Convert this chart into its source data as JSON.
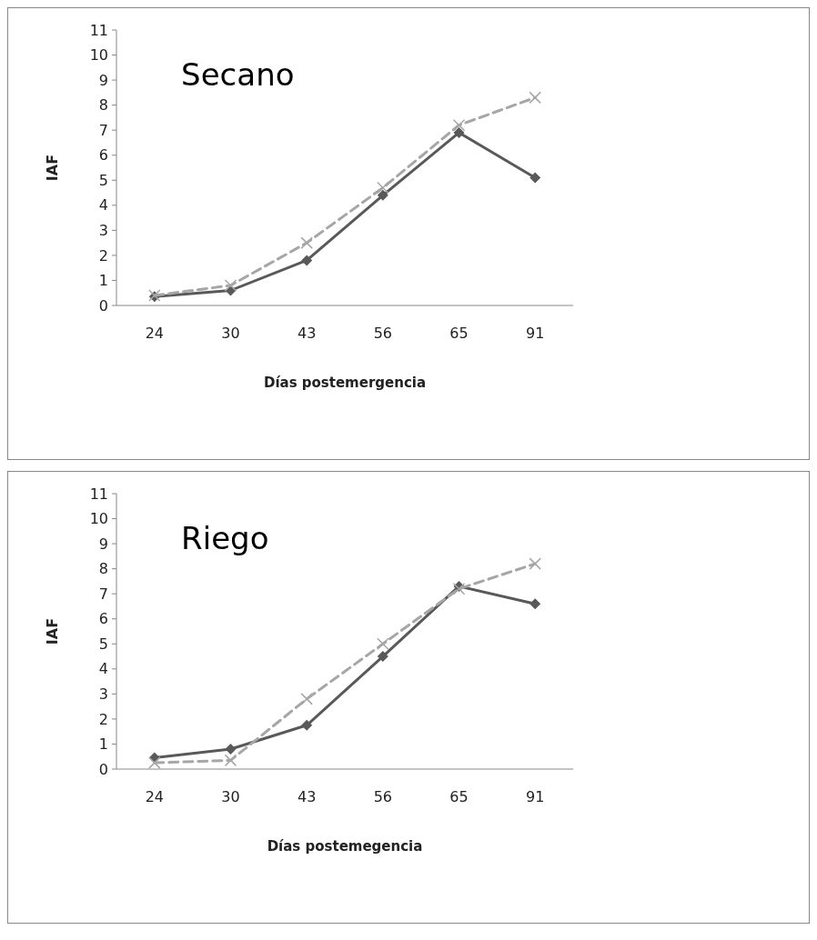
{
  "chart_data": [
    {
      "type": "line",
      "title": "Secano",
      "xlabel": "Días postemergencia",
      "ylabel": "IAF",
      "categories": [
        "24",
        "30",
        "43",
        "56",
        "65",
        "91"
      ],
      "ylim": [
        0,
        11
      ],
      "yticks": [
        0,
        1,
        2,
        3,
        4,
        5,
        6,
        7,
        8,
        9,
        10,
        11
      ],
      "grid": false,
      "series": [
        {
          "color": "#595959",
          "marker": "diamond",
          "line_style": "solid",
          "values": [
            0.35,
            0.6,
            1.8,
            4.4,
            6.9,
            5.1
          ]
        },
        {
          "color": "#a6a6a6",
          "marker": "cross",
          "line_style": "dashed",
          "values": [
            0.4,
            0.8,
            2.5,
            4.7,
            7.2,
            8.3
          ]
        }
      ]
    },
    {
      "type": "line",
      "title": "Riego",
      "xlabel": "Días postemegencia",
      "ylabel": "IAF",
      "categories": [
        "24",
        "30",
        "43",
        "56",
        "65",
        "91"
      ],
      "ylim": [
        0,
        11
      ],
      "yticks": [
        0,
        1,
        2,
        3,
        4,
        5,
        6,
        7,
        8,
        9,
        10,
        11
      ],
      "grid": false,
      "series": [
        {
          "color": "#595959",
          "marker": "diamond",
          "line_style": "solid",
          "values": [
            0.45,
            0.8,
            1.75,
            4.5,
            7.3,
            6.6
          ]
        },
        {
          "color": "#a6a6a6",
          "marker": "cross",
          "line_style": "dashed",
          "values": [
            0.25,
            0.35,
            2.8,
            5.0,
            7.2,
            8.2
          ]
        }
      ]
    }
  ]
}
